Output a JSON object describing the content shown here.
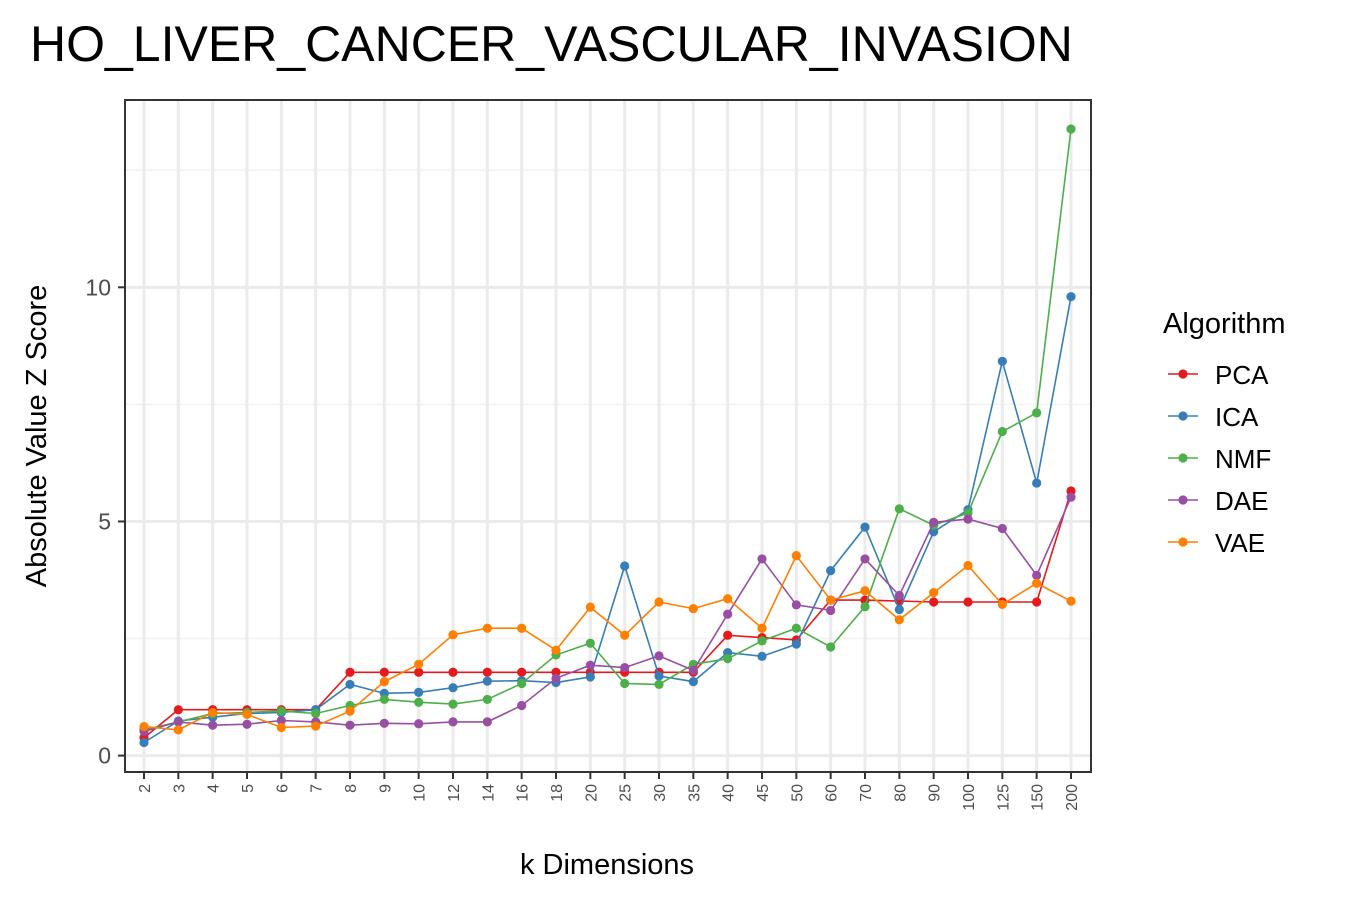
{
  "chart_data": {
    "type": "line",
    "title": "HO_LIVER_CANCER_VASCULAR_INVASION",
    "xlabel": "k Dimensions",
    "ylabel": "Absolute Value Z Score",
    "categories": [
      "2",
      "3",
      "4",
      "5",
      "6",
      "7",
      "8",
      "9",
      "10",
      "12",
      "14",
      "16",
      "18",
      "20",
      "25",
      "30",
      "35",
      "40",
      "45",
      "50",
      "60",
      "70",
      "80",
      "90",
      "100",
      "125",
      "150",
      "200"
    ],
    "ylim": [
      -0.35,
      14.0
    ],
    "yticks": [
      0,
      5,
      10
    ],
    "ytick_labels": [
      "0",
      "5",
      "10"
    ],
    "grid": true,
    "legend": {
      "title": "Algorithm",
      "position": "right"
    },
    "series": [
      {
        "name": "PCA",
        "color": "#e41a1c",
        "values": [
          0.38,
          0.98,
          0.98,
          0.98,
          0.98,
          0.98,
          1.78,
          1.78,
          1.78,
          1.78,
          1.78,
          1.78,
          1.78,
          1.78,
          1.78,
          1.78,
          1.78,
          2.57,
          2.52,
          2.47,
          3.32,
          3.32,
          3.3,
          3.28,
          3.28,
          3.28,
          3.28,
          5.65
        ]
      },
      {
        "name": "ICA",
        "color": "#377eb8",
        "values": [
          0.28,
          0.74,
          0.82,
          0.9,
          0.92,
          0.98,
          1.52,
          1.33,
          1.35,
          1.45,
          1.59,
          1.6,
          1.56,
          1.68,
          4.05,
          1.7,
          1.58,
          2.2,
          2.12,
          2.38,
          3.95,
          4.88,
          3.12,
          4.78,
          5.25,
          8.42,
          5.82,
          9.8
        ]
      },
      {
        "name": "NMF",
        "color": "#4daf4a",
        "values": [
          0.55,
          0.72,
          0.9,
          0.92,
          0.95,
          0.9,
          1.07,
          1.2,
          1.14,
          1.1,
          1.2,
          1.54,
          2.15,
          2.4,
          1.54,
          1.52,
          1.95,
          2.07,
          2.45,
          2.72,
          2.32,
          3.18,
          5.27,
          4.92,
          5.18,
          6.92,
          7.32,
          13.38
        ]
      },
      {
        "name": "DAE",
        "color": "#984ea3",
        "values": [
          0.52,
          0.72,
          0.65,
          0.67,
          0.75,
          0.72,
          0.65,
          0.69,
          0.68,
          0.72,
          0.72,
          1.07,
          1.65,
          1.93,
          1.88,
          2.13,
          1.82,
          3.02,
          4.2,
          3.22,
          3.1,
          4.2,
          3.42,
          4.98,
          5.05,
          4.85,
          3.85,
          5.52
        ]
      },
      {
        "name": "VAE",
        "color": "#ff7f00",
        "values": [
          0.62,
          0.55,
          0.92,
          0.88,
          0.6,
          0.63,
          0.95,
          1.58,
          1.95,
          2.58,
          2.72,
          2.72,
          2.25,
          3.17,
          2.57,
          3.28,
          3.14,
          3.35,
          2.72,
          4.27,
          3.32,
          3.52,
          2.9,
          3.48,
          4.06,
          3.23,
          3.68,
          3.3
        ]
      }
    ]
  }
}
